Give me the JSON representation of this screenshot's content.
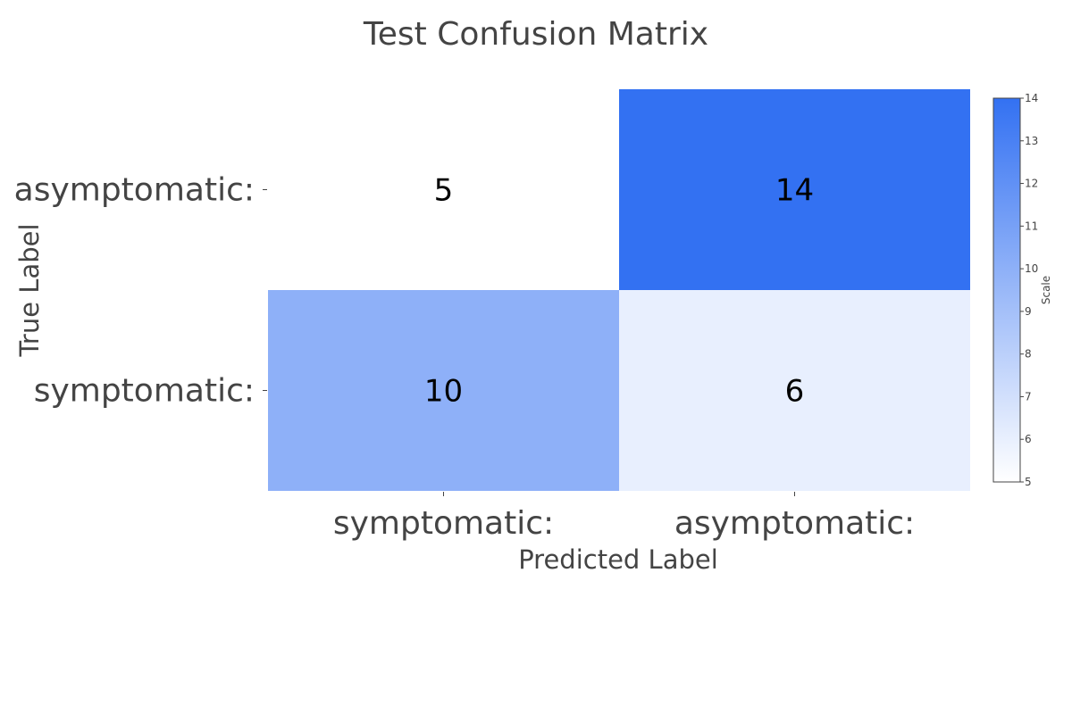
{
  "chart_data": {
    "type": "heatmap",
    "title": "Test Confusion Matrix",
    "xlabel": "Predicted Label",
    "ylabel": "True Label",
    "x_categories": [
      "symptomatic:",
      "asymptomatic:"
    ],
    "y_categories": [
      "asymptomatic:",
      "symptomatic:"
    ],
    "z": [
      [
        5,
        14
      ],
      [
        10,
        6
      ]
    ],
    "colorscale": {
      "min": 5,
      "max": 14,
      "low_color": "#ffffff",
      "high_color": "#3371f2"
    },
    "colorbar": {
      "title": "Scale",
      "ticks": [
        5,
        6,
        7,
        8,
        9,
        10,
        11,
        12,
        13,
        14
      ]
    }
  }
}
